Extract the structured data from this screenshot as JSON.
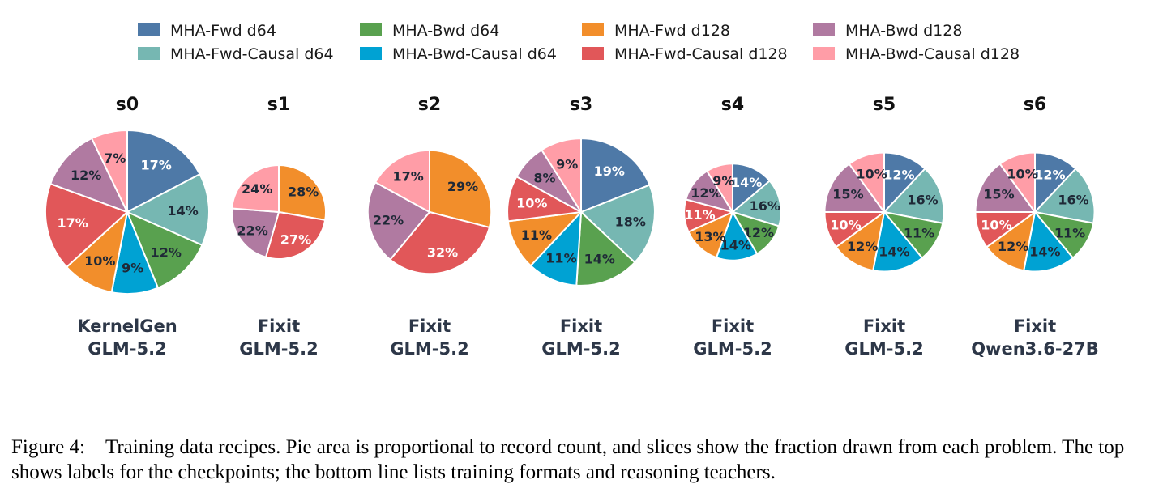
{
  "chart_data": {
    "type": "pie",
    "legend": {
      "placement": "top",
      "entries": [
        {
          "name": "MHA-Fwd d64",
          "color": "#4e79a7"
        },
        {
          "name": "MHA-Fwd-Causal d64",
          "color": "#76b7b2"
        },
        {
          "name": "MHA-Bwd d64",
          "color": "#59a14f"
        },
        {
          "name": "MHA-Bwd-Causal d64",
          "color": "#00a2d3"
        },
        {
          "name": "MHA-Fwd d128",
          "color": "#f28e2b"
        },
        {
          "name": "MHA-Fwd-Causal d128",
          "color": "#e15759"
        },
        {
          "name": "MHA-Bwd d128",
          "color": "#b07aa1"
        },
        {
          "name": "MHA-Bwd-Causal d128",
          "color": "#ff9da7"
        }
      ]
    },
    "pies": [
      {
        "title": "s0",
        "label_lines": [
          "KernelGen",
          "GLM-5.2"
        ],
        "area_scale": 1.0,
        "slices": [
          17,
          14,
          12,
          9,
          10,
          17,
          12,
          7
        ]
      },
      {
        "title": "s1",
        "label_lines": [
          "Fixit",
          "GLM-5.2"
        ],
        "area_scale": 0.33,
        "slices": [
          0,
          0,
          0,
          0,
          28,
          27,
          22,
          24
        ]
      },
      {
        "title": "s2",
        "label_lines": [
          "Fixit",
          "GLM-5.2"
        ],
        "area_scale": 0.57,
        "slices": [
          0,
          0,
          0,
          0,
          29,
          32,
          22,
          17
        ]
      },
      {
        "title": "s3",
        "label_lines": [
          "Fixit",
          "GLM-5.2"
        ],
        "area_scale": 0.81,
        "slices": [
          19,
          18,
          14,
          11,
          11,
          10,
          8,
          9
        ]
      },
      {
        "title": "s4",
        "label_lines": [
          "Fixit",
          "GLM-5.2"
        ],
        "area_scale": 0.35,
        "slices": [
          14,
          16,
          12,
          14,
          13,
          11,
          12,
          9
        ]
      },
      {
        "title": "s5",
        "label_lines": [
          "Fixit",
          "GLM-5.2"
        ],
        "area_scale": 0.53,
        "slices": [
          12,
          16,
          11,
          14,
          12,
          10,
          15,
          10
        ]
      },
      {
        "title": "s6",
        "label_lines": [
          "Fixit",
          "Qwen3.6-27B"
        ],
        "area_scale": 0.53,
        "slices": [
          12,
          16,
          11,
          14,
          12,
          10,
          15,
          10
        ]
      }
    ],
    "pct_text_colors": [
      "#ffffff",
      "#1f2937",
      "#1f2937",
      "#1f2937",
      "#1f2937",
      "#ffffff",
      "#1f2937",
      "#1f2937"
    ]
  },
  "caption": "Figure 4: Training data recipes. Pie area is proportional to record count, and slices show the fraction drawn from each problem. The top shows labels for the checkpoints; the bottom line lists training formats and reasoning teachers."
}
